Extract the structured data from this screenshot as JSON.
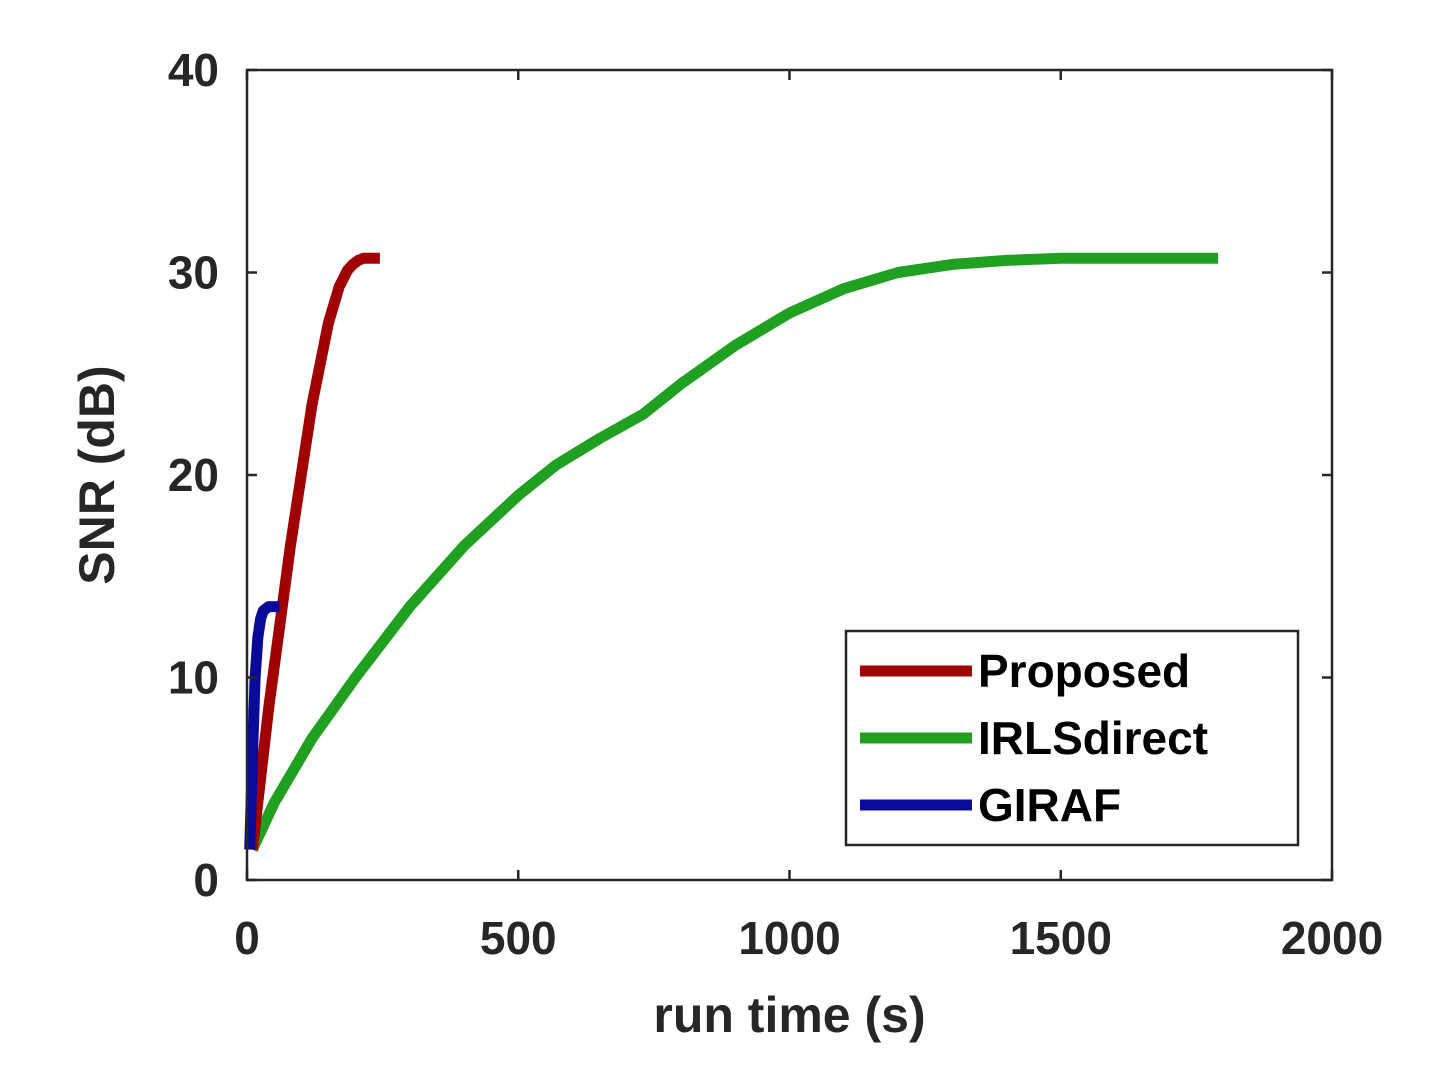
{
  "chart_data": {
    "type": "line",
    "title": "",
    "xlabel": "run time (s)",
    "ylabel": "SNR (dB)",
    "xlim": [
      0,
      2000
    ],
    "ylim": [
      0,
      40
    ],
    "xticks": [
      0,
      500,
      1000,
      1500,
      2000
    ],
    "yticks": [
      0,
      10,
      20,
      30,
      40
    ],
    "grid": false,
    "legend_position": "bottom-right",
    "series": [
      {
        "name": "Proposed",
        "color": "#a00000",
        "x": [
          10,
          40,
          80,
          120,
          150,
          170,
          185,
          195,
          205,
          215,
          230,
          245
        ],
        "y": [
          1.5,
          8.5,
          16.5,
          23.5,
          27.5,
          29.3,
          30.1,
          30.4,
          30.6,
          30.7,
          30.7,
          30.7
        ]
      },
      {
        "name": "IRLSdirect",
        "color": "#20a020",
        "x": [
          10,
          50,
          120,
          200,
          300,
          400,
          500,
          570,
          650,
          730,
          800,
          900,
          1000,
          1100,
          1200,
          1300,
          1400,
          1500,
          1600,
          1700,
          1790
        ],
        "y": [
          1.5,
          3.8,
          7.0,
          10.0,
          13.5,
          16.5,
          19.0,
          20.5,
          21.8,
          23.0,
          24.5,
          26.4,
          28.0,
          29.2,
          30.0,
          30.4,
          30.6,
          30.7,
          30.7,
          30.7,
          30.7
        ]
      },
      {
        "name": "GIRAF",
        "color": "#0a0a9a",
        "x": [
          5,
          10,
          15,
          20,
          25,
          30,
          40,
          50,
          60
        ],
        "y": [
          1.5,
          6.0,
          10.0,
          12.0,
          12.9,
          13.3,
          13.5,
          13.5,
          13.5
        ]
      }
    ]
  }
}
